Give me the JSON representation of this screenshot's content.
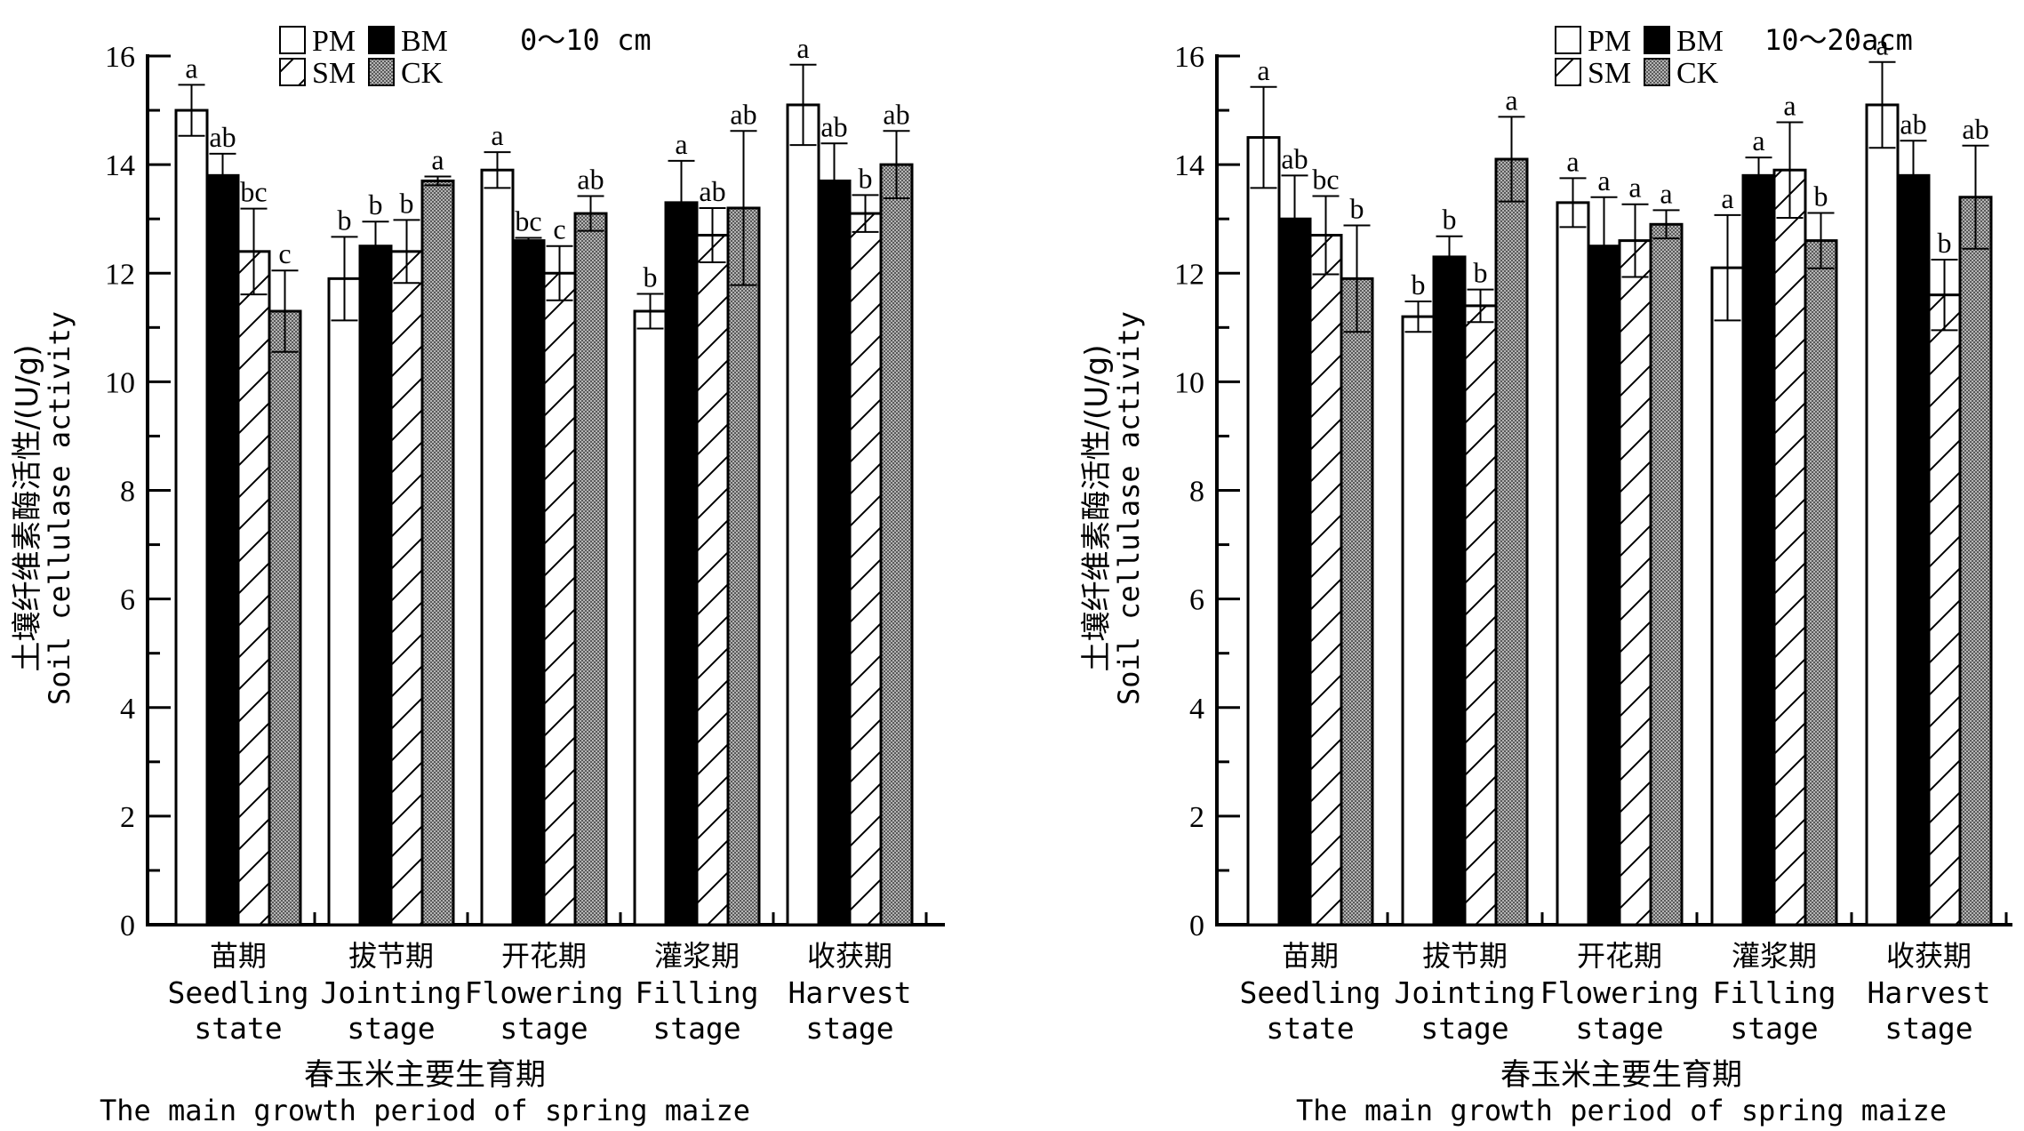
{
  "chart_data": [
    {
      "type": "bar",
      "title": "0～10 cm",
      "xlabel_cn": "春玉米主要生育期",
      "xlabel": "The main growth period of spring maize",
      "ylabel_cn": "土壤纤维素酶活性/(U/g)",
      "ylabel": "Soil cellulase activity",
      "ylim": [
        0,
        16
      ],
      "yticks": [
        "0",
        "2",
        "4",
        "6",
        "8",
        "10",
        "12",
        "14",
        "16"
      ],
      "legend_position": "top-center",
      "categories": [
        {
          "cn": "苗期",
          "en1": "Seedling",
          "en2": "state"
        },
        {
          "cn": "拔节期",
          "en1": "Jointing",
          "en2": "stage"
        },
        {
          "cn": "开花期",
          "en1": "Flowering",
          "en2": "stage"
        },
        {
          "cn": "灌浆期",
          "en1": "Filling",
          "en2": "stage"
        },
        {
          "cn": "收获期",
          "en1": "Harvest",
          "en2": "stage"
        }
      ],
      "series": [
        {
          "name": "PM",
          "values": [
            15.0,
            11.9,
            13.9,
            11.3,
            15.1
          ],
          "errors": [
            0.47,
            0.77,
            0.33,
            0.32,
            0.74
          ],
          "letters": [
            "a",
            "b",
            "a",
            "b",
            "a"
          ]
        },
        {
          "name": "BM",
          "values": [
            13.8,
            12.5,
            12.6,
            13.3,
            13.7
          ],
          "errors": [
            0.4,
            0.45,
            0.05,
            0.77,
            0.69
          ],
          "letters": [
            "ab",
            "b",
            "bc",
            "a",
            "ab"
          ]
        },
        {
          "name": "SM",
          "values": [
            12.4,
            12.4,
            12.0,
            12.7,
            13.1
          ],
          "errors": [
            0.79,
            0.58,
            0.5,
            0.5,
            0.34
          ],
          "letters": [
            "bc",
            "b",
            "c",
            "ab",
            "b"
          ]
        },
        {
          "name": "CK",
          "values": [
            11.3,
            13.7,
            13.1,
            13.2,
            14.0
          ],
          "errors": [
            0.75,
            0.08,
            0.32,
            1.42,
            0.62
          ],
          "letters": [
            "c",
            "a",
            "ab",
            "ab",
            "ab"
          ]
        }
      ]
    },
    {
      "type": "bar",
      "title": "10～20acm",
      "xlabel_cn": "春玉米主要生育期",
      "xlabel": "The main growth period of spring maize",
      "ylabel_cn": "土壤纤维素酶活性/(U/g)",
      "ylabel": "Soil cellulase activity",
      "ylim": [
        0,
        16
      ],
      "yticks": [
        "0",
        "2",
        "4",
        "6",
        "8",
        "10",
        "12",
        "14",
        "16"
      ],
      "legend_position": "top-center",
      "categories": [
        {
          "cn": "苗期",
          "en1": "Seedling",
          "en2": "state"
        },
        {
          "cn": "拔节期",
          "en1": "Jointing",
          "en2": "stage"
        },
        {
          "cn": "开花期",
          "en1": "Flowering",
          "en2": "stage"
        },
        {
          "cn": "灌浆期",
          "en1": "Filling",
          "en2": "stage"
        },
        {
          "cn": "收获期",
          "en1": "Harvest",
          "en2": "stage"
        }
      ],
      "series": [
        {
          "name": "PM",
          "values": [
            14.5,
            11.2,
            13.3,
            12.1,
            15.1
          ],
          "errors": [
            0.93,
            0.28,
            0.45,
            0.97,
            0.79
          ],
          "letters": [
            "a",
            "b",
            "a",
            "a",
            "a"
          ]
        },
        {
          "name": "BM",
          "values": [
            13.0,
            12.3,
            12.5,
            13.8,
            13.8
          ],
          "errors": [
            0.8,
            0.38,
            0.9,
            0.33,
            0.64
          ],
          "letters": [
            "ab",
            "b",
            "a",
            "a",
            "ab"
          ]
        },
        {
          "name": "SM",
          "values": [
            12.7,
            11.4,
            12.6,
            13.9,
            11.6
          ],
          "errors": [
            0.72,
            0.3,
            0.67,
            0.88,
            0.65
          ],
          "letters": [
            "bc",
            "b",
            "a",
            "a",
            "b"
          ]
        },
        {
          "name": "CK",
          "values": [
            11.9,
            14.1,
            12.9,
            12.6,
            13.4
          ],
          "errors": [
            0.98,
            0.78,
            0.26,
            0.51,
            0.95
          ],
          "letters": [
            "b",
            "a",
            "a",
            "b",
            "ab"
          ]
        }
      ]
    }
  ],
  "styles": {
    "PM": {
      "fill": "#ffffff",
      "pattern": "none"
    },
    "BM": {
      "fill": "#000000",
      "pattern": "none"
    },
    "SM": {
      "fill": "#ffffff",
      "pattern": "diagonal-hatch"
    },
    "CK": {
      "fill": "#9a9a9a",
      "pattern": "fine-dots"
    }
  }
}
